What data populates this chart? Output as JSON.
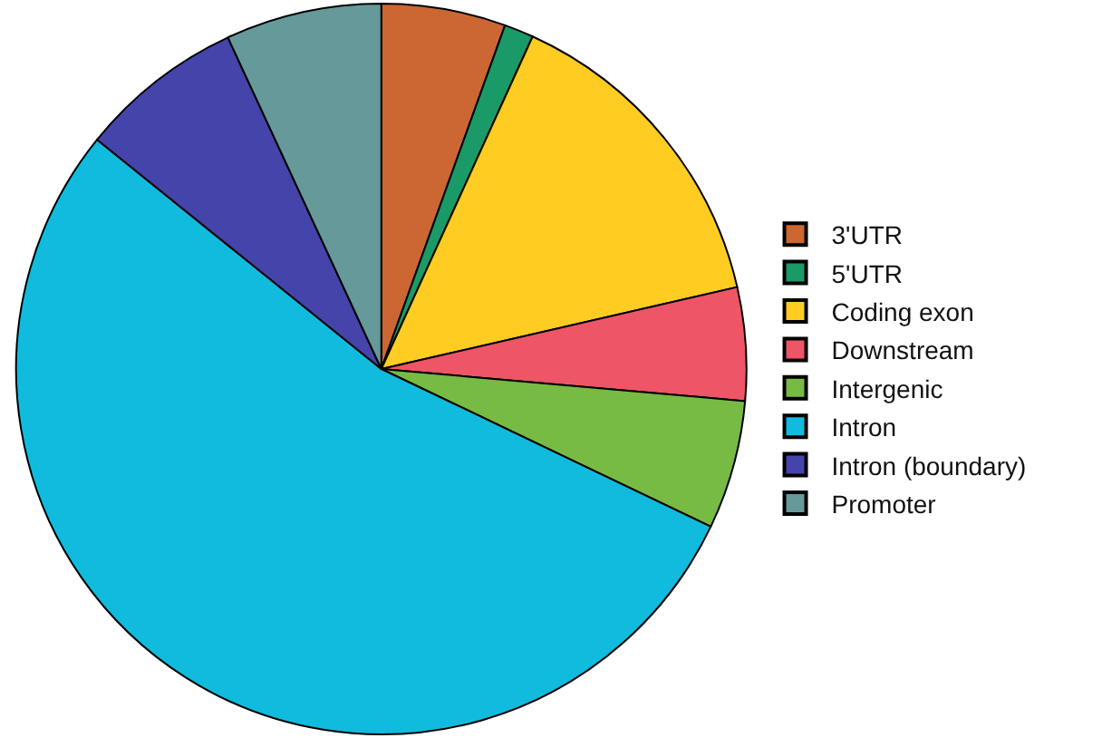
{
  "chart_data": {
    "type": "pie",
    "categories": [
      "3'UTR",
      "5'UTR",
      "Coding exon",
      "Downstream",
      "Intergenic",
      "Intron",
      "Intron (boundary)",
      "Promoter"
    ],
    "values": [
      5.5,
      1.3,
      14.6,
      5.0,
      5.7,
      53.7,
      7.3,
      6.9
    ],
    "colors": [
      "#cc6633",
      "#1a9a66",
      "#ffcc22",
      "#ee5566",
      "#77bb44",
      "#11bbdd",
      "#4444aa",
      "#669999"
    ],
    "legend": "right"
  }
}
